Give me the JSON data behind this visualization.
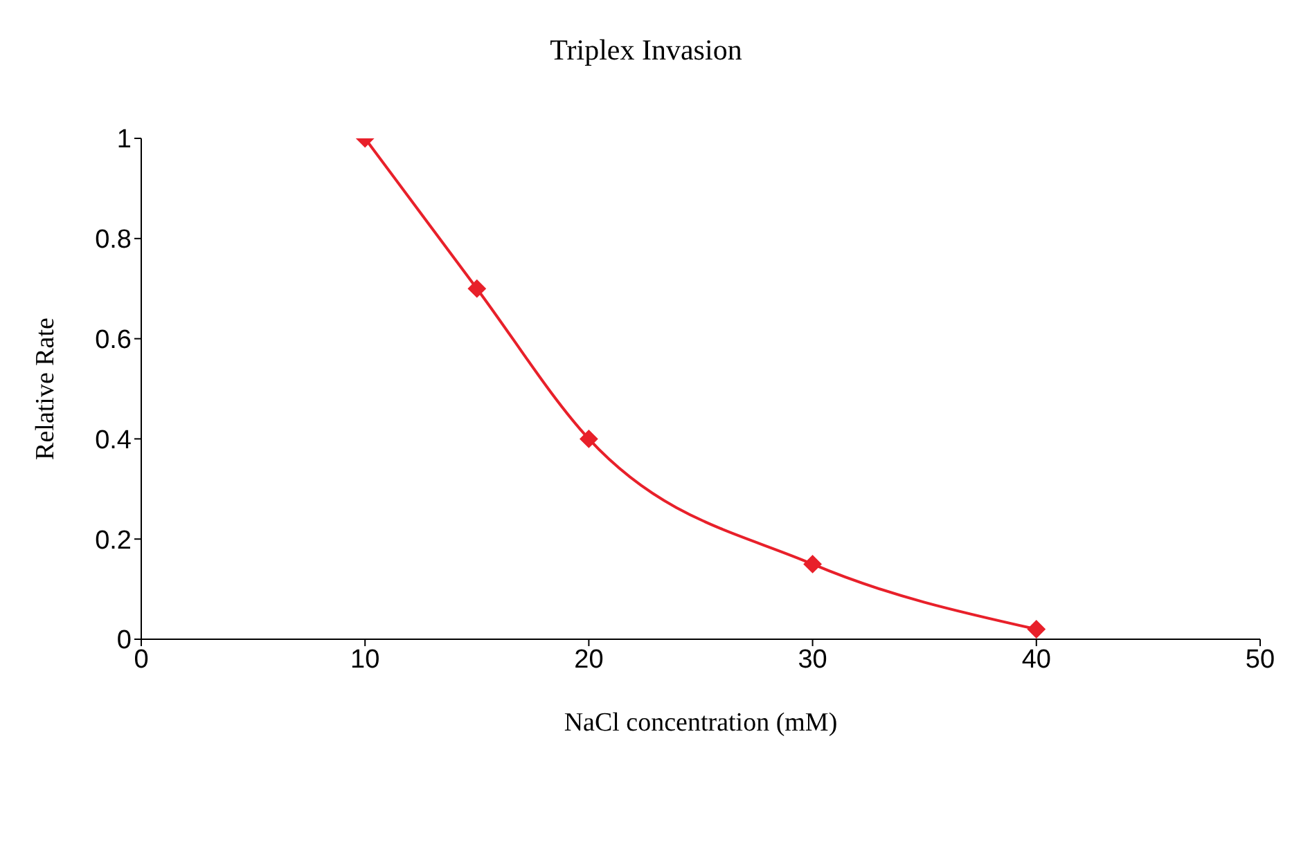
{
  "chart_data": {
    "type": "line",
    "title": "Triplex Invasion",
    "xlabel": "NaCl concentration (mM)",
    "ylabel": "Relative Rate",
    "x": [
      10,
      15,
      20,
      30,
      40
    ],
    "series": [
      {
        "color": "#e8202a",
        "values": [
          1,
          0.7,
          0.4,
          0.15,
          0.02
        ]
      }
    ],
    "xlim": [
      0,
      50
    ],
    "xticks": [
      0,
      10,
      20,
      30,
      40,
      50
    ],
    "ylim": [
      0,
      1
    ],
    "yticks": [
      0,
      0.2,
      0.4,
      0.6,
      0.8,
      1
    ],
    "grid": false,
    "legend": false,
    "marker": "diamond",
    "line_style": "solid"
  }
}
